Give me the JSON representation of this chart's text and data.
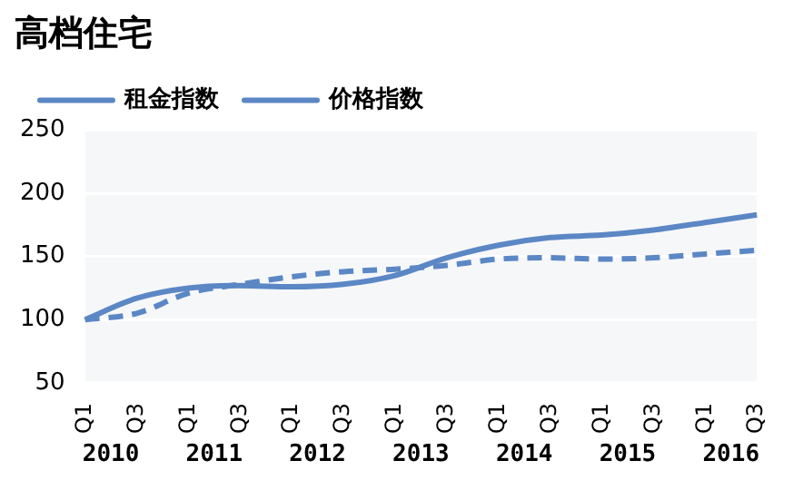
{
  "chart_data": {
    "type": "line",
    "title": "高档住宅",
    "categories": [
      "Q1",
      "Q3",
      "Q1",
      "Q3",
      "Q1",
      "Q3",
      "Q1",
      "Q3",
      "Q1",
      "Q3",
      "Q1",
      "Q3",
      "Q1",
      "Q3"
    ],
    "series": [
      {
        "name": "租金指数",
        "color": "#5b87c5",
        "line_style": "dashed",
        "values": [
          100,
          105,
          121,
          128,
          134,
          138,
          140,
          143,
          148,
          149,
          148,
          149,
          152,
          155
        ]
      },
      {
        "name": "价格指数",
        "color": "#5b87c5",
        "line_style": "solid",
        "values": [
          100,
          117,
          125,
          127,
          126,
          128,
          135,
          149,
          159,
          165,
          167,
          171,
          177,
          183
        ]
      }
    ],
    "annotations": [
      "2010",
      "2011",
      "2012",
      "2013",
      "2014",
      "2015",
      "2016"
    ],
    "ylim": [
      50,
      250
    ],
    "yticks": [
      50,
      100,
      150,
      200,
      250
    ],
    "grid": "y",
    "legend": "top left",
    "marker": "none"
  }
}
